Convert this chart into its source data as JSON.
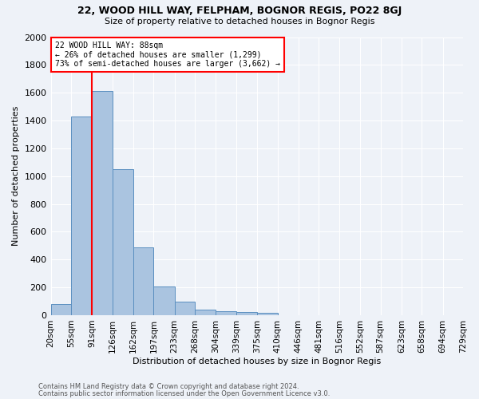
{
  "title1": "22, WOOD HILL WAY, FELPHAM, BOGNOR REGIS, PO22 8GJ",
  "title2": "Size of property relative to detached houses in Bognor Regis",
  "xlabel": "Distribution of detached houses by size in Bognor Regis",
  "ylabel": "Number of detached properties",
  "footnote1": "Contains HM Land Registry data © Crown copyright and database right 2024.",
  "footnote2": "Contains public sector information licensed under the Open Government Licence v3.0.",
  "bin_labels": [
    "20sqm",
    "55sqm",
    "91sqm",
    "126sqm",
    "162sqm",
    "197sqm",
    "233sqm",
    "268sqm",
    "304sqm",
    "339sqm",
    "375sqm",
    "410sqm",
    "446sqm",
    "481sqm",
    "516sqm",
    "552sqm",
    "587sqm",
    "623sqm",
    "658sqm",
    "694sqm",
    "729sqm"
  ],
  "bin_edges": [
    20,
    55,
    91,
    126,
    162,
    197,
    233,
    268,
    304,
    339,
    375,
    410,
    446,
    481,
    516,
    552,
    587,
    623,
    658,
    694,
    729
  ],
  "bar_heights": [
    80,
    1430,
    1610,
    1050,
    490,
    205,
    100,
    40,
    27,
    20,
    15,
    0,
    0,
    0,
    0,
    0,
    0,
    0,
    0,
    0
  ],
  "bar_color": "#aac4e0",
  "bar_edge_color": "#5a8fc0",
  "red_line_x": 91,
  "annotation_text1": "22 WOOD HILL WAY: 88sqm",
  "annotation_text2": "← 26% of detached houses are smaller (1,299)",
  "annotation_text3": "73% of semi-detached houses are larger (3,662) →",
  "ylim": [
    0,
    2000
  ],
  "yticks": [
    0,
    200,
    400,
    600,
    800,
    1000,
    1200,
    1400,
    1600,
    1800,
    2000
  ],
  "bg_color": "#eef2f8",
  "grid_color": "white"
}
